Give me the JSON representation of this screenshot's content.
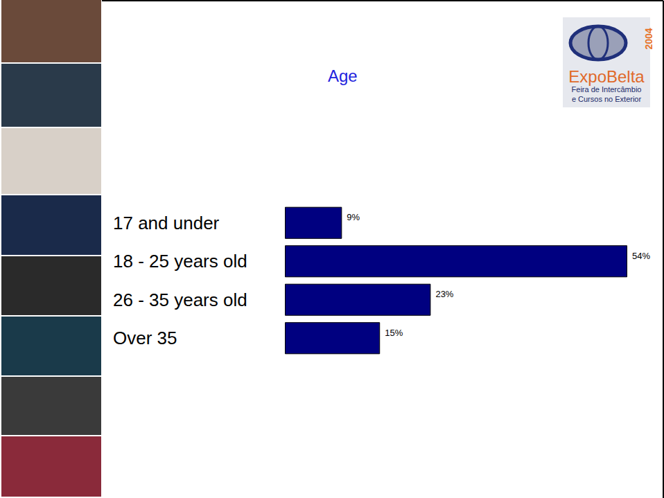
{
  "chart_data": {
    "type": "bar",
    "title": "Age",
    "orientation": "horizontal",
    "categories": [
      "17 and under",
      "18 - 25 years old",
      "26 - 35 years old",
      "Over 35"
    ],
    "values": [
      9,
      54,
      23,
      15
    ],
    "value_labels": [
      "9%",
      "54%",
      "23%",
      "15%"
    ],
    "color": "#000080",
    "xlim": [
      0,
      54
    ],
    "data_labels": true,
    "tick_labels": "y",
    "grid": false
  },
  "logo": {
    "name": "ExpoBelta",
    "year": "2004",
    "tagline": [
      "Feira de Intercâmbio",
      "e Cursos no Exterior"
    ]
  }
}
